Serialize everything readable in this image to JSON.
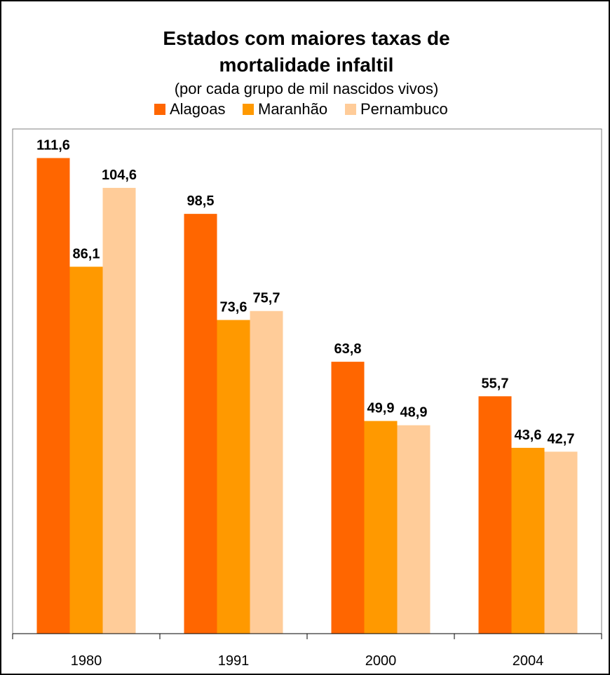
{
  "chart_data": {
    "type": "bar",
    "title_lines": [
      "Estados com maiores taxas de",
      "mortalidade infaltil"
    ],
    "subtitle": "(por cada grupo de mil nascidos vivos)",
    "categories": [
      "1980",
      "1991",
      "2000",
      "2004"
    ],
    "series": [
      {
        "name": "Alagoas",
        "color": "#FF6600",
        "values": [
          111.6,
          98.5,
          63.8,
          55.7
        ],
        "labels": [
          "111,6",
          "98,5",
          "63,8",
          "55,7"
        ]
      },
      {
        "name": "Maranhão",
        "color": "#FF9900",
        "values": [
          86.1,
          73.6,
          49.9,
          43.6
        ],
        "labels": [
          "86,1",
          "73,6",
          "49,9",
          "43,6"
        ]
      },
      {
        "name": "Pernambuco",
        "color": "#FFCC99",
        "values": [
          104.6,
          75.7,
          48.9,
          42.7
        ],
        "labels": [
          "104,6",
          "75,7",
          "48,9",
          "42,7"
        ]
      }
    ],
    "ylim": [
      0,
      120
    ],
    "grid": false,
    "legend_position": "top"
  }
}
